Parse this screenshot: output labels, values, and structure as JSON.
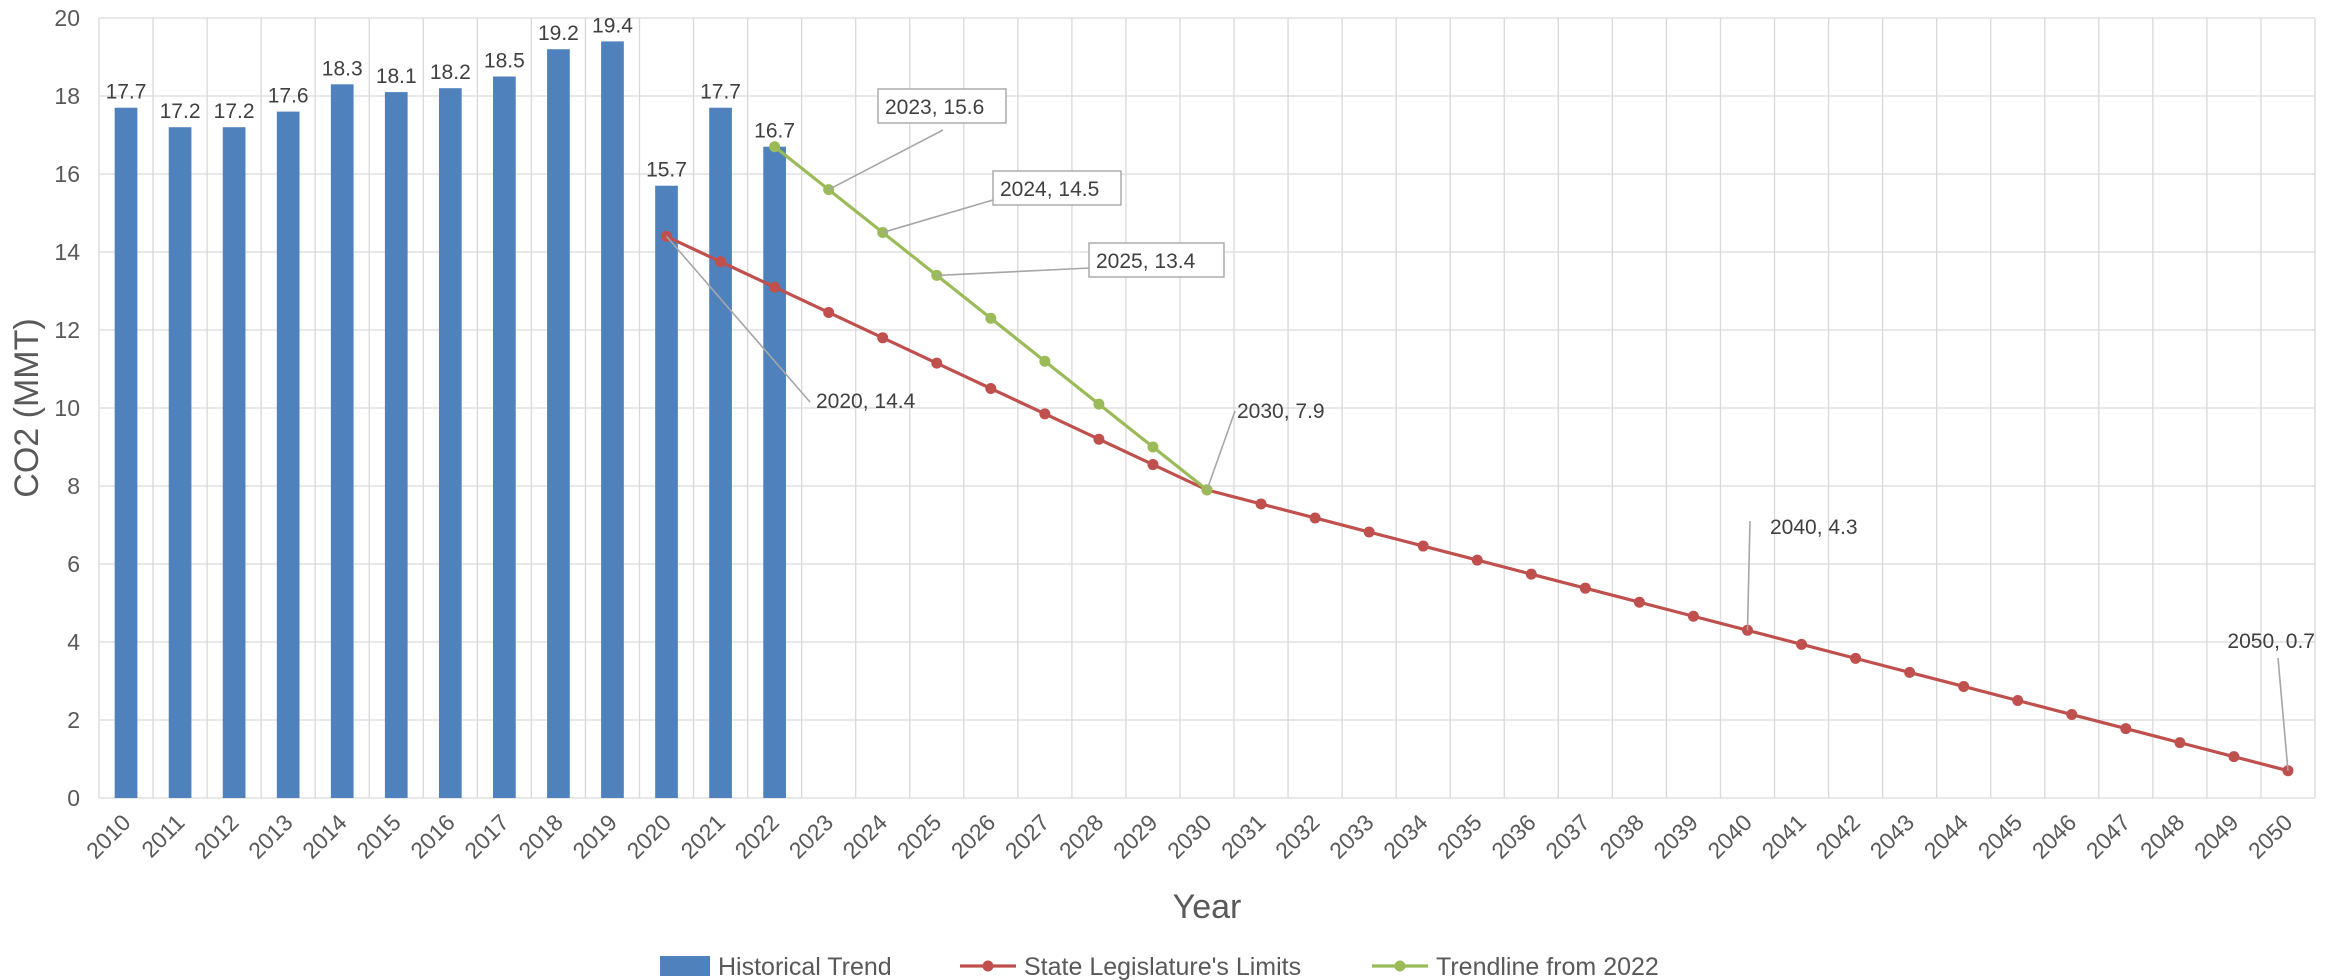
{
  "chart_data": {
    "type": "bar",
    "xlabel": "Year",
    "ylabel": "CO2 (MMT)",
    "ylim": [
      0,
      20
    ],
    "yticks": [
      0,
      2,
      4,
      6,
      8,
      10,
      12,
      14,
      16,
      18,
      20
    ],
    "grid": true,
    "legend_position": "bottom",
    "categories": [
      "2010",
      "2011",
      "2012",
      "2013",
      "2014",
      "2015",
      "2016",
      "2017",
      "2018",
      "2019",
      "2020",
      "2021",
      "2022",
      "2023",
      "2024",
      "2025",
      "2026",
      "2027",
      "2028",
      "2029",
      "2030",
      "2031",
      "2032",
      "2033",
      "2034",
      "2035",
      "2036",
      "2037",
      "2038",
      "2039",
      "2040",
      "2041",
      "2042",
      "2043",
      "2044",
      "2045",
      "2046",
      "2047",
      "2048",
      "2049",
      "2050"
    ],
    "series": [
      {
        "name": "Historical Trend",
        "type": "bar",
        "color": "#4f81bd",
        "x": [
          "2010",
          "2011",
          "2012",
          "2013",
          "2014",
          "2015",
          "2016",
          "2017",
          "2018",
          "2019",
          "2020",
          "2021",
          "2022"
        ],
        "values": [
          17.7,
          17.2,
          17.2,
          17.6,
          18.3,
          18.1,
          18.2,
          18.5,
          19.2,
          19.4,
          15.7,
          17.7,
          16.7
        ],
        "labels": [
          "17.7",
          "17.2",
          "17.2",
          "17.6",
          "18.3",
          "18.1",
          "18.2",
          "18.5",
          "19.2",
          "19.4",
          "15.7",
          "17.7",
          "16.7"
        ]
      },
      {
        "name": "State Legislature's Limits",
        "type": "line",
        "color": "#c0504d",
        "x": [
          "2020",
          "2021",
          "2022",
          "2023",
          "2024",
          "2025",
          "2026",
          "2027",
          "2028",
          "2029",
          "2030",
          "2031",
          "2032",
          "2033",
          "2034",
          "2035",
          "2036",
          "2037",
          "2038",
          "2039",
          "2040",
          "2041",
          "2042",
          "2043",
          "2044",
          "2045",
          "2046",
          "2047",
          "2048",
          "2049",
          "2050"
        ],
        "values": [
          14.4,
          13.75,
          13.1,
          12.45,
          11.8,
          11.15,
          10.5,
          9.85,
          9.2,
          8.55,
          7.9,
          7.54,
          7.18,
          6.82,
          6.46,
          6.1,
          5.74,
          5.38,
          5.02,
          4.66,
          4.3,
          3.94,
          3.58,
          3.22,
          2.86,
          2.5,
          2.14,
          1.78,
          1.42,
          1.06,
          0.7
        ]
      },
      {
        "name": "Trendline from 2022",
        "type": "line",
        "color": "#9bbb59",
        "x": [
          "2022",
          "2023",
          "2024",
          "2025",
          "2026",
          "2027",
          "2028",
          "2029",
          "2030"
        ],
        "values": [
          16.7,
          15.6,
          14.5,
          13.4,
          12.3,
          11.2,
          10.1,
          9.0,
          7.9
        ]
      }
    ],
    "annotations": [
      {
        "text": "2023, 15.6",
        "x": "2023",
        "y": 15.6,
        "boxed": true,
        "color": "#000000"
      },
      {
        "text": "2024, 14.5",
        "x": "2024",
        "y": 14.5,
        "boxed": true,
        "color": "#404040"
      },
      {
        "text": "2025, 13.4",
        "x": "2025",
        "y": 13.4,
        "boxed": true,
        "color": "#ff0000"
      },
      {
        "text": "2020, 14.4",
        "x": "2020",
        "y": 14.4,
        "boxed": false,
        "color": "#404040"
      },
      {
        "text": "2030, 7.9",
        "x": "2030",
        "y": 7.9,
        "boxed": false,
        "color": "#404040"
      },
      {
        "text": "2040, 4.3",
        "x": "2040",
        "y": 4.3,
        "boxed": false,
        "color": "#404040"
      },
      {
        "text": "2050, 0.7",
        "x": "2050",
        "y": 0.7,
        "boxed": false,
        "color": "#404040"
      }
    ],
    "highlight_label": {
      "x": "2022",
      "color": "#ff0000"
    }
  }
}
